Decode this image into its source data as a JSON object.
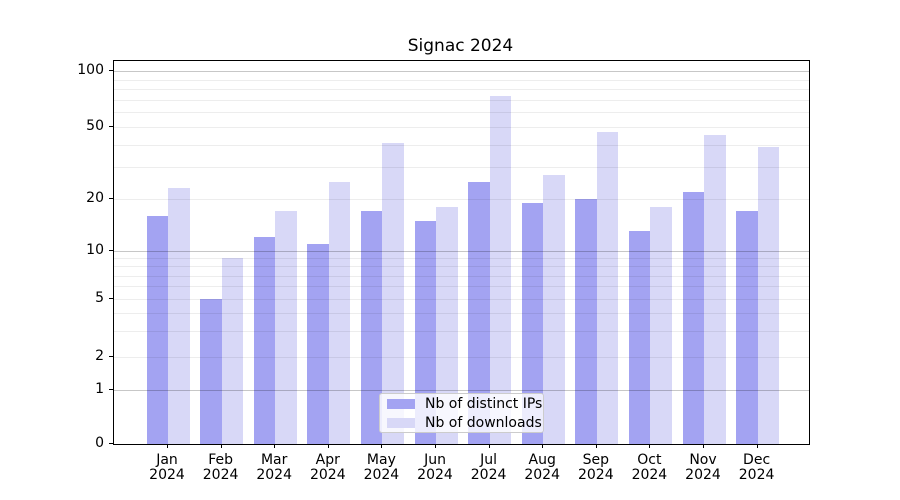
{
  "chart_data": {
    "type": "bar",
    "title": "Signac 2024",
    "categories": [
      "Jan 2024",
      "Feb 2024",
      "Mar 2024",
      "Apr 2024",
      "May 2024",
      "Jun 2024",
      "Jul 2024",
      "Aug 2024",
      "Sep 2024",
      "Oct 2024",
      "Nov 2024",
      "Dec 2024"
    ],
    "series": [
      {
        "name": "Nb of distinct IPs",
        "color": "#a3a3f2",
        "values": [
          16,
          5,
          12,
          11,
          17,
          15,
          25,
          19,
          20,
          13,
          22,
          17
        ]
      },
      {
        "name": "Nb of downloads",
        "color": "#d8d8f7",
        "values": [
          23,
          9,
          17,
          25,
          41,
          18,
          73,
          27,
          47,
          18,
          45,
          39
        ]
      }
    ],
    "yticks": [
      0,
      1,
      2,
      5,
      10,
      20,
      50,
      100
    ],
    "ylim": [
      0,
      114
    ],
    "yscale": "symlog",
    "grid": "horizontal, major and minor, drawn over bars",
    "legend_position": "lower center"
  }
}
